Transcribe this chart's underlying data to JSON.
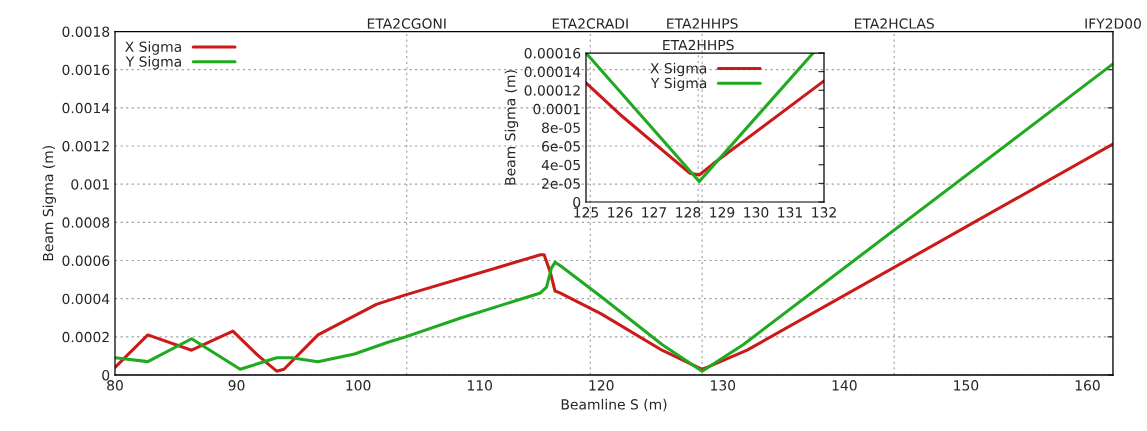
{
  "chart_data": [
    {
      "type": "line",
      "xlabel": "Beamline S (m)",
      "ylabel": "Beam Sigma (m)",
      "xlim": [
        80,
        162.1
      ],
      "ylim": [
        0,
        0.0018
      ],
      "xticks": [
        80,
        90,
        100,
        110,
        120,
        130,
        140,
        150,
        160
      ],
      "yticks": [
        0,
        0.0002,
        0.0004,
        0.0006,
        0.0008,
        0.001,
        0.0012,
        0.0014,
        0.0016,
        0.0018
      ],
      "ref_lines": [
        {
          "axis": "x",
          "value": 104.0,
          "label": "ETA2CGONI",
          "line_style": "dotted"
        },
        {
          "axis": "x",
          "value": 119.1,
          "label": "ETA2CRADI",
          "line_style": "dotted"
        },
        {
          "axis": "x",
          "value": 128.3,
          "label": "ETA2HHPS",
          "line_style": "dotted"
        },
        {
          "axis": "x",
          "value": 144.1,
          "label": "ETA2HCLAS",
          "line_style": "dotted"
        },
        {
          "axis": "x",
          "value": 162.1,
          "label": "IFY2D00"
        }
      ],
      "grid": "y",
      "legend": "top left",
      "series": [
        {
          "name": "X Sigma",
          "color": "#cc1a1a",
          "x": [
            80,
            82.7,
            86.3,
            89.7,
            91.8,
            93.3,
            93.9,
            96.7,
            101.5,
            103.9,
            115.0,
            115.3,
            115.8,
            116.2,
            116.6,
            120,
            125,
            128.3,
            128.7,
            132,
            162.1
          ],
          "values": [
            4e-05,
            0.00021,
            0.00013,
            0.00023,
            0.0001,
            2e-05,
            3e-05,
            0.00021,
            0.00037,
            0.00042,
            0.00063,
            0.00063,
            0.00054,
            0.00044,
            0.00043,
            0.00032,
            0.00013,
            3e-05,
            4e-05,
            0.00013,
            0.00121
          ]
        },
        {
          "name": "Y Sigma",
          "color": "#1faa1f",
          "x": [
            80,
            82.7,
            86.3,
            90.3,
            93.3,
            94.5,
            96.7,
            99.7,
            102.4,
            103.9,
            108.5,
            115.0,
            115.5,
            115.9,
            116.2,
            116.7,
            120,
            125,
            128.3,
            131.7,
            162.1
          ],
          "values": [
            9e-05,
            7e-05,
            0.00019,
            3e-05,
            9e-05,
            9e-05,
            7e-05,
            0.00011,
            0.00017,
            0.0002,
            0.0003,
            0.00043,
            0.00046,
            0.00056,
            0.00059,
            0.00057,
            0.00041,
            0.00016,
            2e-05,
            0.00016,
            0.00163
          ]
        }
      ]
    },
    {
      "type": "line",
      "ylabel": "Beam Sigma (m)",
      "xlim": [
        125,
        132
      ],
      "ylim": [
        0,
        0.00016
      ],
      "xticks": [
        125,
        126,
        127,
        128,
        129,
        130,
        131,
        132
      ],
      "yticks": [
        0,
        {
          "value": 2e-05,
          "label": "2e-05"
        },
        {
          "value": 4e-05,
          "label": "4e-05"
        },
        {
          "value": 6e-05,
          "label": "6e-05"
        },
        {
          "value": 8e-05,
          "label": "8e-05"
        },
        0.0001,
        0.00012,
        0.00014,
        0.00016
      ],
      "ref_lines": [
        {
          "axis": "x",
          "value": 128.3,
          "label": "ETA2HHPS",
          "line_style": "dotted"
        }
      ],
      "legend": "top",
      "series": [
        {
          "name": "X Sigma",
          "color": "#cc1a1a",
          "x": [
            125,
            126,
            128.05,
            128.33,
            128.74,
            132
          ],
          "values": [
            0.000128,
            9.4e-05,
            3.1e-05,
            2.9e-05,
            4.1e-05,
            0.00013
          ]
        },
        {
          "name": "Y Sigma",
          "color": "#1faa1f",
          "x": [
            125,
            128.33,
            131.68
          ],
          "values": [
            0.00016,
            2.2e-05,
            0.00016
          ]
        }
      ]
    }
  ]
}
